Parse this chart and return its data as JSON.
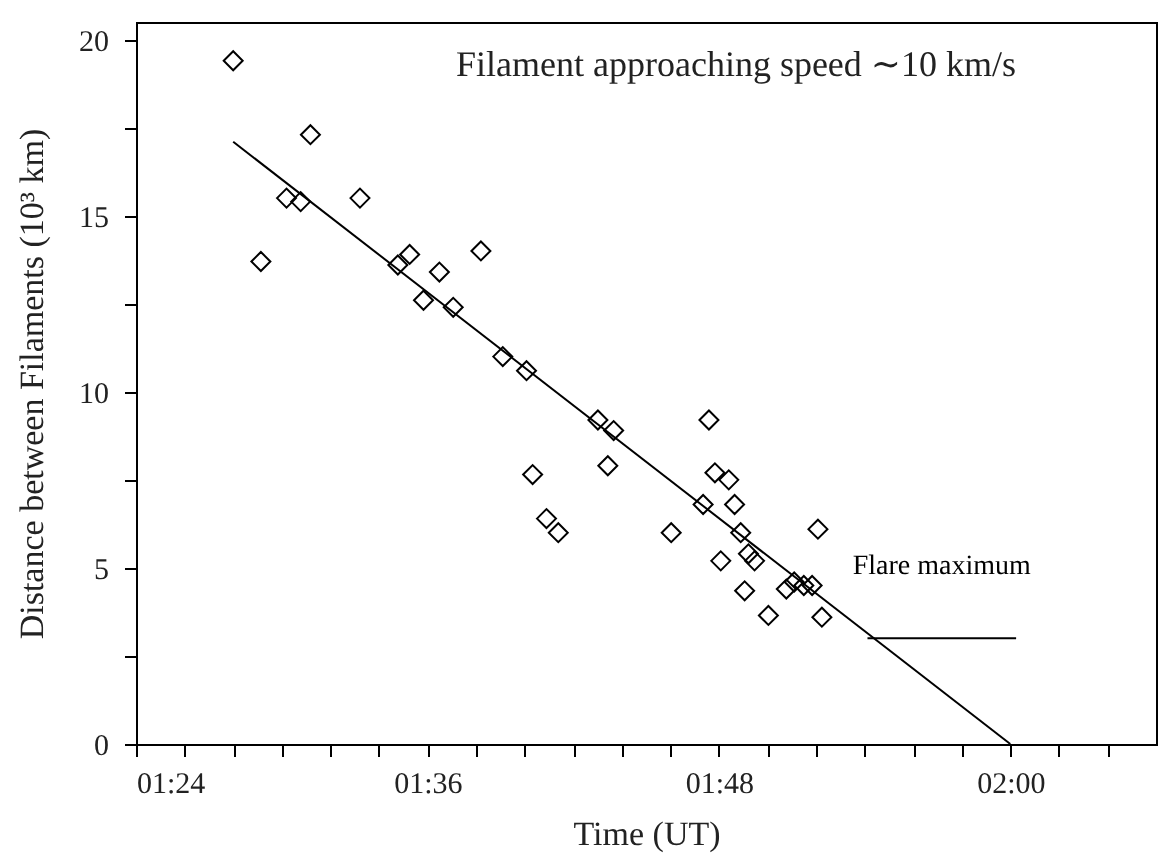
{
  "chart_data": {
    "type": "scatter",
    "xlabel": "Time (UT)",
    "ylabel": "Distance between Filaments (10³ km)",
    "annotations": [
      "Filament approaching speed ∼10 km/s"
    ],
    "xlim": [
      1.4,
      2.1
    ],
    "xticks": [
      {
        "value": 1.4,
        "label": "01:24"
      },
      {
        "value": 1.4333,
        "label": null
      },
      {
        "value": 1.4667,
        "label": null
      },
      {
        "value": 1.5,
        "label": null
      },
      {
        "value": 1.5333,
        "label": null
      },
      {
        "value": 1.5667,
        "label": null
      },
      {
        "value": 1.6,
        "label": "01:36"
      },
      {
        "value": 1.6333,
        "label": null
      },
      {
        "value": 1.6667,
        "label": null
      },
      {
        "value": 1.7,
        "label": null
      },
      {
        "value": 1.7333,
        "label": null
      },
      {
        "value": 1.7667,
        "label": null
      },
      {
        "value": 1.8,
        "label": "01:48"
      },
      {
        "value": 1.8333,
        "label": null
      },
      {
        "value": 1.8667,
        "label": null
      },
      {
        "value": 1.9,
        "label": null
      },
      {
        "value": 1.9333,
        "label": null
      },
      {
        "value": 1.9667,
        "label": null
      },
      {
        "value": 2.0,
        "label": "02:00"
      },
      {
        "value": 2.0333,
        "label": null
      },
      {
        "value": 2.0667,
        "label": null
      }
    ],
    "ylim": [
      0,
      20.5
    ],
    "yticks": [
      0,
      {
        "value": 2.5,
        "label": null
      },
      5,
      {
        "value": 7.5,
        "label": null
      },
      10,
      {
        "value": 12.5,
        "label": null
      },
      15,
      {
        "value": 17.5,
        "label": null
      },
      20
    ],
    "grid": false,
    "series": [
      {
        "marker": "diamond",
        "color": "#000000",
        "x": [
          1.4667,
          1.4857,
          1.5033,
          1.513,
          1.5197,
          1.5537,
          1.5797,
          1.5878,
          1.5973,
          1.6082,
          1.6177,
          1.6367,
          1.6517,
          1.668,
          1.6722,
          1.6817,
          1.6898,
          1.717,
          1.7238,
          1.7278,
          1.7673,
          1.7892,
          1.7932,
          1.7973,
          1.8068,
          1.8108,
          1.8013,
          1.815,
          1.8203,
          1.8245,
          1.8177,
          1.834,
          1.8463,
          1.8517,
          1.8583,
          1.864,
          1.868,
          1.8707
        ],
        "values": [
          19.4,
          13.7,
          15.5,
          15.4,
          17.3,
          15.5,
          13.6,
          13.9,
          12.6,
          13.4,
          12.4,
          14.0,
          11.0,
          10.6,
          7.65,
          6.4,
          6.0,
          9.2,
          7.9,
          8.9,
          6.0,
          6.8,
          9.2,
          7.7,
          7.5,
          6.8,
          5.2,
          6.0,
          5.4,
          5.2,
          4.35,
          3.65,
          4.4,
          4.6,
          4.5,
          4.5,
          6.1,
          3.6
        ]
      },
      {
        "type": "line",
        "color": "#000000",
        "marker": "none",
        "x": [
          1.4667,
          2.0
        ],
        "values": [
          17.1,
          0
        ]
      },
      {
        "type": "line",
        "name": "Flare maximum",
        "color": "#000000",
        "marker": "none",
        "x": [
          1.902,
          2.004
        ],
        "values": [
          3.0,
          3.0
        ]
      }
    ]
  }
}
